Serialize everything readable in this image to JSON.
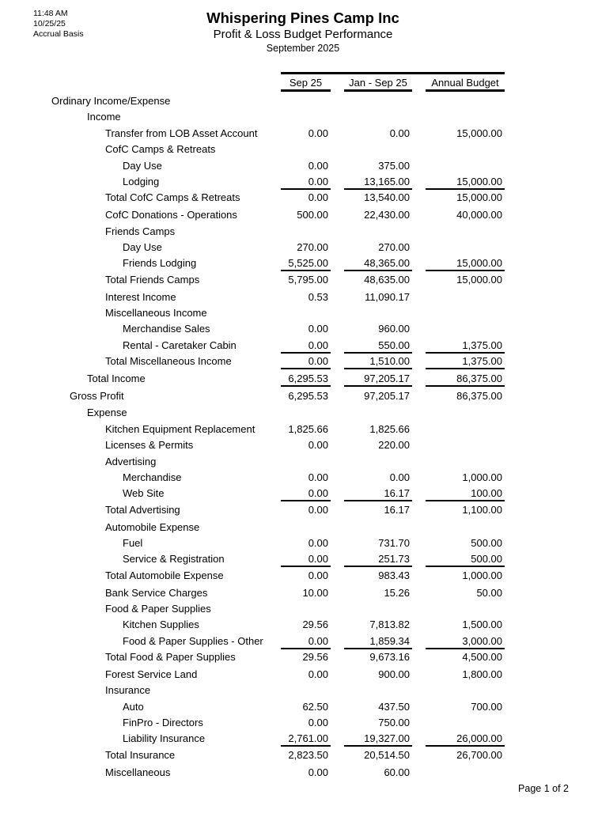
{
  "header": {
    "time": "11:48 AM",
    "date": "10/25/25",
    "basis": "Accrual Basis",
    "company": "Whispering Pines Camp Inc",
    "report": "Profit & Loss Budget Performance",
    "period": "September 2025"
  },
  "columns": [
    "Sep 25",
    "Jan - Sep 25",
    "Annual Budget"
  ],
  "rows": [
    {
      "label": "Ordinary Income/Expense",
      "level": 0
    },
    {
      "label": "Income",
      "level": 1
    },
    {
      "label": "Transfer from LOB Asset Account",
      "level": 2,
      "values": [
        "0.00",
        "0.00",
        "15,000.00"
      ]
    },
    {
      "label": "CofC Camps & Retreats",
      "level": 2
    },
    {
      "label": "Day Use",
      "level": 3,
      "values": [
        "0.00",
        "375.00",
        ""
      ]
    },
    {
      "label": "Lodging",
      "level": 3,
      "values": [
        "0.00",
        "13,165.00",
        "15,000.00"
      ],
      "rule": true
    },
    {
      "label": "Total CofC Camps & Retreats",
      "level": 2,
      "values": [
        "0.00",
        "13,540.00",
        "15,000.00"
      ]
    },
    {
      "label": "CofC Donations - Operations",
      "level": 2,
      "values": [
        "500.00",
        "22,430.00",
        "40,000.00"
      ]
    },
    {
      "label": "Friends Camps",
      "level": 2
    },
    {
      "label": "Day Use",
      "level": 3,
      "values": [
        "270.00",
        "270.00",
        ""
      ]
    },
    {
      "label": "Friends Lodging",
      "level": 3,
      "values": [
        "5,525.00",
        "48,365.00",
        "15,000.00"
      ],
      "rule": true
    },
    {
      "label": "Total Friends Camps",
      "level": 2,
      "values": [
        "5,795.00",
        "48,635.00",
        "15,000.00"
      ]
    },
    {
      "label": "Interest Income",
      "level": 2,
      "values": [
        "0.53",
        "11,090.17",
        ""
      ]
    },
    {
      "label": "Miscellaneous Income",
      "level": 2
    },
    {
      "label": "Merchandise Sales",
      "level": 3,
      "values": [
        "0.00",
        "960.00",
        ""
      ]
    },
    {
      "label": "Rental - Caretaker Cabin",
      "level": 3,
      "values": [
        "0.00",
        "550.00",
        "1,375.00"
      ],
      "rule": true
    },
    {
      "label": "Total Miscellaneous Income",
      "level": 2,
      "values": [
        "0.00",
        "1,510.00",
        "1,375.00"
      ],
      "rule": true
    },
    {
      "label": "Total Income",
      "level": 1,
      "values": [
        "6,295.53",
        "97,205.17",
        "86,375.00"
      ],
      "rule": true
    },
    {
      "label": "Gross Profit",
      "level": 0.5,
      "values": [
        "6,295.53",
        "97,205.17",
        "86,375.00"
      ]
    },
    {
      "label": "Expense",
      "level": 1
    },
    {
      "label": "Kitchen Equipment Replacement",
      "level": 2,
      "values": [
        "1,825.66",
        "1,825.66",
        ""
      ]
    },
    {
      "label": "Licenses & Permits",
      "level": 2,
      "values": [
        "0.00",
        "220.00",
        ""
      ]
    },
    {
      "label": "Advertising",
      "level": 2
    },
    {
      "label": "Merchandise",
      "level": 3,
      "values": [
        "0.00",
        "0.00",
        "1,000.00"
      ]
    },
    {
      "label": "Web Site",
      "level": 3,
      "values": [
        "0.00",
        "16.17",
        "100.00"
      ],
      "rule": true
    },
    {
      "label": "Total Advertising",
      "level": 2,
      "values": [
        "0.00",
        "16.17",
        "1,100.00"
      ]
    },
    {
      "label": "Automobile Expense",
      "level": 2
    },
    {
      "label": "Fuel",
      "level": 3,
      "values": [
        "0.00",
        "731.70",
        "500.00"
      ]
    },
    {
      "label": "Service & Registration",
      "level": 3,
      "values": [
        "0.00",
        "251.73",
        "500.00"
      ],
      "rule": true
    },
    {
      "label": "Total Automobile Expense",
      "level": 2,
      "values": [
        "0.00",
        "983.43",
        "1,000.00"
      ]
    },
    {
      "label": "Bank Service Charges",
      "level": 2,
      "values": [
        "10.00",
        "15.26",
        "50.00"
      ]
    },
    {
      "label": "Food & Paper Supplies",
      "level": 2
    },
    {
      "label": "Kitchen Supplies",
      "level": 3,
      "values": [
        "29.56",
        "7,813.82",
        "1,500.00"
      ]
    },
    {
      "label": "Food & Paper Supplies - Other",
      "level": 3,
      "values": [
        "0.00",
        "1,859.34",
        "3,000.00"
      ],
      "rule": true
    },
    {
      "label": "Total Food & Paper Supplies",
      "level": 2,
      "values": [
        "29.56",
        "9,673.16",
        "4,500.00"
      ]
    },
    {
      "label": "Forest Service Land",
      "level": 2,
      "values": [
        "0.00",
        "900.00",
        "1,800.00"
      ]
    },
    {
      "label": "Insurance",
      "level": 2
    },
    {
      "label": "Auto",
      "level": 3,
      "values": [
        "62.50",
        "437.50",
        "700.00"
      ]
    },
    {
      "label": "FinPro - Directors",
      "level": 3,
      "values": [
        "0.00",
        "750.00",
        ""
      ]
    },
    {
      "label": "Liability Insurance",
      "level": 3,
      "values": [
        "2,761.00",
        "19,327.00",
        "26,000.00"
      ],
      "rule": true
    },
    {
      "label": "Total Insurance",
      "level": 2,
      "values": [
        "2,823.50",
        "20,514.50",
        "26,700.00"
      ]
    },
    {
      "label": "Miscellaneous",
      "level": 2,
      "values": [
        "0.00",
        "60.00",
        ""
      ]
    }
  ],
  "footer": {
    "page": "Page 1 of 2"
  }
}
